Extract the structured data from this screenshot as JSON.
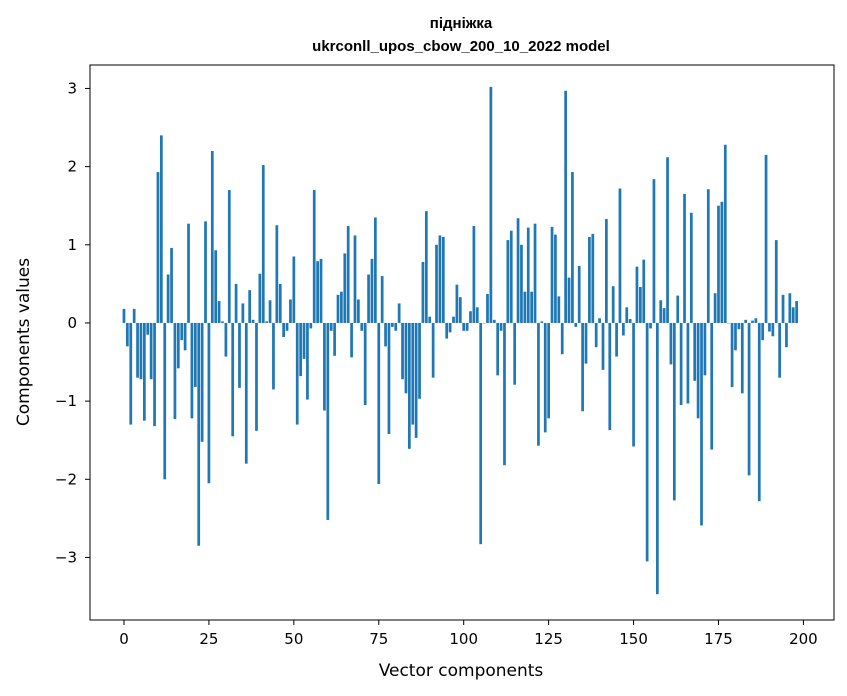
{
  "chart_data": {
    "type": "bar",
    "title_line1": "підніжка",
    "title_line2": "ukrconll_upos_cbow_200_10_2022 model",
    "xlabel": "Vector components",
    "ylabel": "Components values",
    "xlim": [
      -10,
      209
    ],
    "ylim": [
      -3.8,
      3.3
    ],
    "xticks": [
      0,
      25,
      50,
      75,
      100,
      125,
      150,
      175,
      200
    ],
    "xtick_labels": [
      "0",
      "25",
      "50",
      "75",
      "100",
      "125",
      "150",
      "175",
      "200"
    ],
    "yticks": [
      -3,
      -2,
      -1,
      0,
      1,
      2,
      3
    ],
    "ytick_labels": [
      "−3",
      "−2",
      "−1",
      "0",
      "1",
      "2",
      "3"
    ],
    "bar_color": "#1f77b4",
    "grid": false,
    "values": [
      0.18,
      -0.3,
      -1.3,
      0.18,
      -0.7,
      -0.72,
      -1.25,
      -0.15,
      -0.72,
      -1.32,
      1.93,
      2.4,
      -2.0,
      0.62,
      0.96,
      -1.23,
      -0.58,
      -0.22,
      -0.35,
      1.27,
      -1.22,
      -0.82,
      -2.85,
      -1.52,
      1.3,
      -2.05,
      2.2,
      0.93,
      0.28,
      0.02,
      -0.43,
      1.7,
      -1.45,
      0.5,
      -0.83,
      0.25,
      -1.8,
      0.42,
      0.04,
      -1.38,
      0.63,
      2.02,
      0.02,
      0.29,
      -0.85,
      1.25,
      0.5,
      -0.18,
      -0.1,
      0.3,
      0.85,
      -1.3,
      -0.68,
      -0.46,
      -0.98,
      -0.07,
      1.7,
      0.79,
      0.82,
      -1.12,
      -2.52,
      -0.1,
      -0.42,
      0.36,
      0.4,
      0.89,
      1.24,
      -0.44,
      1.12,
      0.3,
      -0.1,
      -1.05,
      0.62,
      0.82,
      1.35,
      -2.06,
      0.6,
      -0.3,
      -1.42,
      -0.05,
      -0.1,
      0.25,
      -0.72,
      -0.9,
      -1.61,
      -1.3,
      -1.47,
      -0.97,
      0.78,
      1.43,
      0.08,
      -0.7,
      1.0,
      1.12,
      1.1,
      -0.2,
      -0.12,
      0.08,
      0.49,
      0.33,
      -0.1,
      -0.1,
      0.15,
      1.24,
      0.2,
      -2.83,
      0.0,
      0.37,
      3.02,
      0.04,
      -0.67,
      -0.1,
      -1.82,
      1.06,
      1.18,
      -0.79,
      1.34,
      1.0,
      0.4,
      1.22,
      0.4,
      1.27,
      -1.57,
      0.02,
      -1.4,
      -1.22,
      1.23,
      1.13,
      0.34,
      -0.4,
      2.97,
      0.58,
      1.93,
      -0.05,
      0.73,
      -1.13,
      -0.52,
      1.1,
      1.14,
      -0.31,
      0.06,
      -0.6,
      1.33,
      -1.37,
      0.47,
      -0.43,
      1.72,
      -0.16,
      0.2,
      0.05,
      -1.58,
      0.72,
      0.46,
      0.81,
      -3.05,
      -0.07,
      1.84,
      -3.47,
      0.29,
      0.19,
      2.12,
      -0.53,
      -2.27,
      0.35,
      -1.05,
      1.65,
      -1.03,
      1.41,
      -0.74,
      -1.22,
      -2.59,
      -0.67,
      1.71,
      -1.62,
      0.38,
      1.5,
      1.55,
      2.28,
      0.0,
      -0.82,
      -0.35,
      -0.08,
      -0.9,
      0.04,
      -1.95,
      0.03,
      0.06,
      -2.28,
      -0.22,
      2.15,
      -0.11,
      -0.17,
      1.06,
      -0.7,
      0.36,
      -0.31,
      0.38,
      0.2,
      0.28
    ]
  }
}
